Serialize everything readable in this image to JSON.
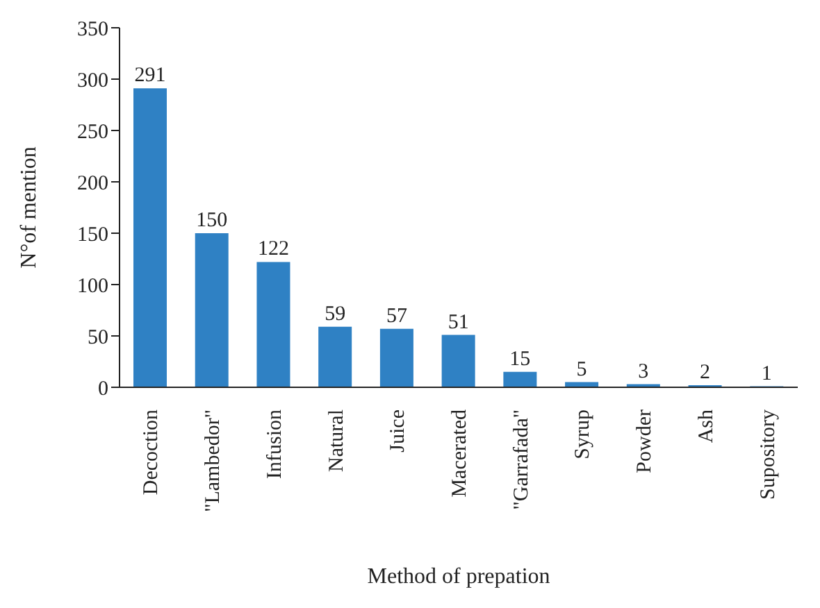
{
  "chart_data": {
    "type": "bar",
    "xlabel": "Method of prepation",
    "ylabel": "N°of mention",
    "categories": [
      "Decoction",
      "\"Lambedor\"",
      "Infusion",
      "Natural",
      "Juice",
      "Macerated",
      "\"Garrafada\"",
      "Syrup",
      "Powder",
      "Ash",
      "Supository"
    ],
    "values": [
      291,
      150,
      122,
      59,
      57,
      51,
      15,
      5,
      3,
      2,
      1
    ],
    "color": "#2f81c4",
    "ylim": [
      0,
      350
    ],
    "yticks": [
      0,
      50,
      100,
      150,
      200,
      250,
      300,
      350
    ],
    "data_labels": true,
    "grid": false,
    "legend": false
  }
}
